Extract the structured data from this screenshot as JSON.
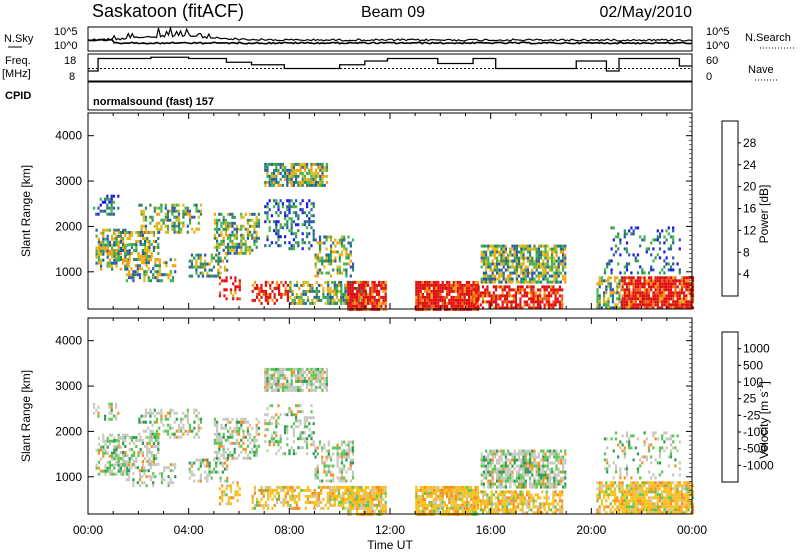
{
  "header": {
    "station": "Saskatoon (fitACF)",
    "beam": "Beam 09",
    "date": "02/May/2010",
    "cpid_label": "CPID",
    "program": "normalsound (fast) 157"
  },
  "chart_data": [
    {
      "type": "line",
      "name": "noise-panel",
      "left_label": "N.Sky",
      "right_label": "N.Search",
      "left_ticks": [
        "10^5",
        "10^0"
      ],
      "right_ticks": [
        "10^5",
        "10^0"
      ]
    },
    {
      "type": "line",
      "name": "frequency-panel",
      "left_label_top": "Freq.",
      "left_label_bottom": "[MHz]",
      "right_label": "Nave",
      "left_ticks": [
        "18",
        "8"
      ],
      "right_ticks": [
        "60",
        "0"
      ],
      "ylim": [
        8,
        18
      ],
      "freq_steps": [
        [
          0.0,
          12
        ],
        [
          0.4,
          17
        ],
        [
          2.5,
          17.5
        ],
        [
          4.0,
          17
        ],
        [
          5.5,
          15.5
        ],
        [
          6.5,
          14.5
        ],
        [
          7.8,
          13
        ],
        [
          9.5,
          13
        ],
        [
          10.0,
          14.5
        ],
        [
          11.0,
          16
        ],
        [
          11.9,
          17
        ],
        [
          13.1,
          17
        ],
        [
          13.9,
          15
        ],
        [
          15.3,
          17
        ],
        [
          16.2,
          13
        ],
        [
          19.2,
          13
        ],
        [
          19.4,
          16
        ],
        [
          20.6,
          12
        ],
        [
          21.1,
          17
        ],
        [
          23.5,
          14
        ],
        [
          24.0,
          14
        ]
      ],
      "nave_level": 13
    },
    {
      "type": "heatmap",
      "name": "power",
      "ylabel": "Slant Range [km]",
      "yticks": [
        1000,
        2000,
        3000,
        4000
      ],
      "ylim": [
        180,
        4500
      ],
      "xlim": [
        0,
        24
      ],
      "colorbar_label": "Power [dB]",
      "colorbar_ticks": [
        "4",
        "8",
        "12",
        "16",
        "20",
        "24",
        "28"
      ],
      "colorbar_colors": [
        "#1a1ae6",
        "#2a5aa8",
        "#2f8a5c",
        "#3fb54a",
        "#d4c01a",
        "#f5a20a",
        "#ef6010",
        "#e01010"
      ],
      "blobs": [
        [
          0.3,
          1.6,
          1050,
          1950,
          0.55,
          "m"
        ],
        [
          1.0,
          2.8,
          1300,
          1900,
          0.55,
          "m"
        ],
        [
          1.5,
          3.5,
          800,
          1300,
          0.45,
          "m"
        ],
        [
          0.2,
          1.2,
          2300,
          2700,
          0.35,
          "l"
        ],
        [
          2.0,
          4.5,
          1900,
          2500,
          0.4,
          "m"
        ],
        [
          4.0,
          5.5,
          900,
          1400,
          0.45,
          "m"
        ],
        [
          5.0,
          6.8,
          1400,
          2300,
          0.55,
          "m"
        ],
        [
          5.2,
          6.0,
          400,
          900,
          0.45,
          "h"
        ],
        [
          6.5,
          8.0,
          300,
          800,
          0.5,
          "h"
        ],
        [
          7.0,
          9.5,
          2900,
          3400,
          0.75,
          "m"
        ],
        [
          7.0,
          9.0,
          1500,
          2600,
          0.35,
          "l"
        ],
        [
          8.0,
          10.5,
          300,
          800,
          0.55,
          "m"
        ],
        [
          9.0,
          10.5,
          900,
          1800,
          0.45,
          "m"
        ],
        [
          9.5,
          11.0,
          300,
          800,
          0.55,
          "m"
        ],
        [
          10.3,
          11.8,
          200,
          800,
          0.8,
          "h"
        ],
        [
          13.0,
          15.5,
          200,
          800,
          0.9,
          "h"
        ],
        [
          15.3,
          18.8,
          200,
          700,
          0.7,
          "h"
        ],
        [
          15.6,
          19.0,
          800,
          1600,
          0.75,
          "m"
        ],
        [
          20.2,
          21.2,
          200,
          900,
          0.6,
          "m"
        ],
        [
          21.2,
          24.0,
          200,
          900,
          0.9,
          "h"
        ],
        [
          20.5,
          23.5,
          1000,
          2000,
          0.2,
          "l"
        ]
      ]
    },
    {
      "type": "heatmap",
      "name": "velocity",
      "ylabel": "Slant Range [km]",
      "yticks": [
        1000,
        2000,
        3000,
        4000
      ],
      "ylim": [
        180,
        4500
      ],
      "xlim": [
        0,
        24
      ],
      "xticks": [
        "00:00",
        "04:00",
        "08:00",
        "12:00",
        "16:00",
        "20:00",
        "00:00"
      ],
      "xlabel": "Time UT",
      "colorbar_label": "Velocity [m s",
      "colorbar_label_sup": "-1",
      "colorbar_label_end": "]",
      "colorbar_ticks": [
        "1000",
        "500",
        "100",
        "25",
        "-25",
        "-100",
        "-500",
        "-1000"
      ],
      "colorbar_colors": [
        "#1a3ab0",
        "#2f6aa0",
        "#2f9a50",
        "#5ac850",
        "#c8c8c0",
        "#f5c020",
        "#f59020",
        "#f06010",
        "#e01010"
      ],
      "blobs": [
        [
          0.3,
          1.6,
          1050,
          1950,
          0.55,
          "g"
        ],
        [
          1.0,
          2.8,
          1300,
          1900,
          0.55,
          "g"
        ],
        [
          1.5,
          3.5,
          800,
          1300,
          0.45,
          "g"
        ],
        [
          0.2,
          1.2,
          2300,
          2700,
          0.35,
          "g"
        ],
        [
          2.0,
          4.5,
          1900,
          2500,
          0.4,
          "g"
        ],
        [
          4.0,
          5.5,
          900,
          1400,
          0.45,
          "g"
        ],
        [
          5.0,
          6.8,
          1400,
          2300,
          0.55,
          "g"
        ],
        [
          5.2,
          6.0,
          400,
          900,
          0.45,
          "o"
        ],
        [
          6.5,
          8.0,
          300,
          800,
          0.5,
          "o"
        ],
        [
          7.0,
          9.5,
          2900,
          3400,
          0.75,
          "g"
        ],
        [
          7.0,
          9.0,
          1500,
          2600,
          0.35,
          "g"
        ],
        [
          8.0,
          10.5,
          300,
          800,
          0.55,
          "o"
        ],
        [
          9.0,
          10.5,
          900,
          1800,
          0.45,
          "g"
        ],
        [
          9.5,
          11.0,
          300,
          800,
          0.55,
          "o"
        ],
        [
          10.3,
          11.8,
          200,
          800,
          0.8,
          "o"
        ],
        [
          13.0,
          15.5,
          200,
          800,
          0.9,
          "o"
        ],
        [
          15.3,
          18.8,
          200,
          700,
          0.7,
          "o"
        ],
        [
          15.6,
          19.0,
          800,
          1600,
          0.75,
          "g"
        ],
        [
          20.2,
          21.2,
          200,
          900,
          0.6,
          "o"
        ],
        [
          21.2,
          24.0,
          200,
          900,
          0.9,
          "o"
        ],
        [
          20.5,
          23.5,
          1000,
          2000,
          0.2,
          "g"
        ]
      ]
    }
  ]
}
